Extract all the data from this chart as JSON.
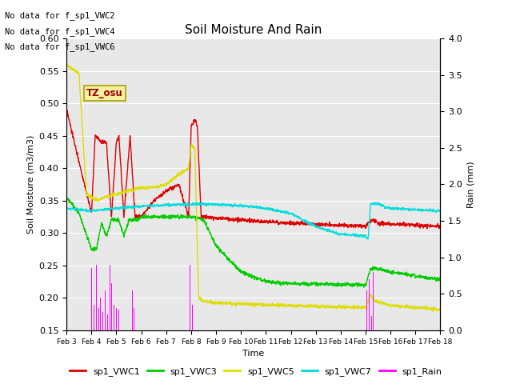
{
  "title": "Soil Moisture And Rain",
  "xlabel": "Time",
  "ylabel_left": "Soil Moisture (m3/m3)",
  "ylabel_right": "Rain (mm)",
  "ylim_left": [
    0.15,
    0.6
  ],
  "ylim_right": [
    0.0,
    4.0
  ],
  "yticks_left": [
    0.15,
    0.2,
    0.25,
    0.3,
    0.35,
    0.4,
    0.45,
    0.5,
    0.55,
    0.6
  ],
  "yticks_right": [
    0.0,
    0.5,
    1.0,
    1.5,
    2.0,
    2.5,
    3.0,
    3.5,
    4.0
  ],
  "no_data_text": [
    "No data for f_sp1_VWC2",
    "No data for f_sp1_VWC4",
    "No data for f_sp1_VWC6"
  ],
  "tz_label": "TZ_osu",
  "fig_bg_color": "#ffffff",
  "plot_bg_color": "#e8e8e8",
  "grid_color": "#ffffff",
  "colors": {
    "VWC1": "#dd0000",
    "VWC3": "#00cc00",
    "VWC5": "#dddd00",
    "VWC7": "#00dddd",
    "Rain": "#ff00ff"
  },
  "legend_labels": [
    "sp1_VWC1",
    "sp1_VWC3",
    "sp1_VWC5",
    "sp1_VWC7",
    "sp1_Rain"
  ],
  "xtick_labels": [
    "Feb 3",
    "Feb 4",
    "Feb 5",
    "Feb 6",
    "Feb 7",
    "Feb 8",
    "Feb 9",
    "Feb 10",
    "Feb 11",
    "Feb 12",
    "Feb 13",
    "Feb 14",
    "Feb 15",
    "Feb 16",
    "Feb 17",
    "Feb 18"
  ]
}
